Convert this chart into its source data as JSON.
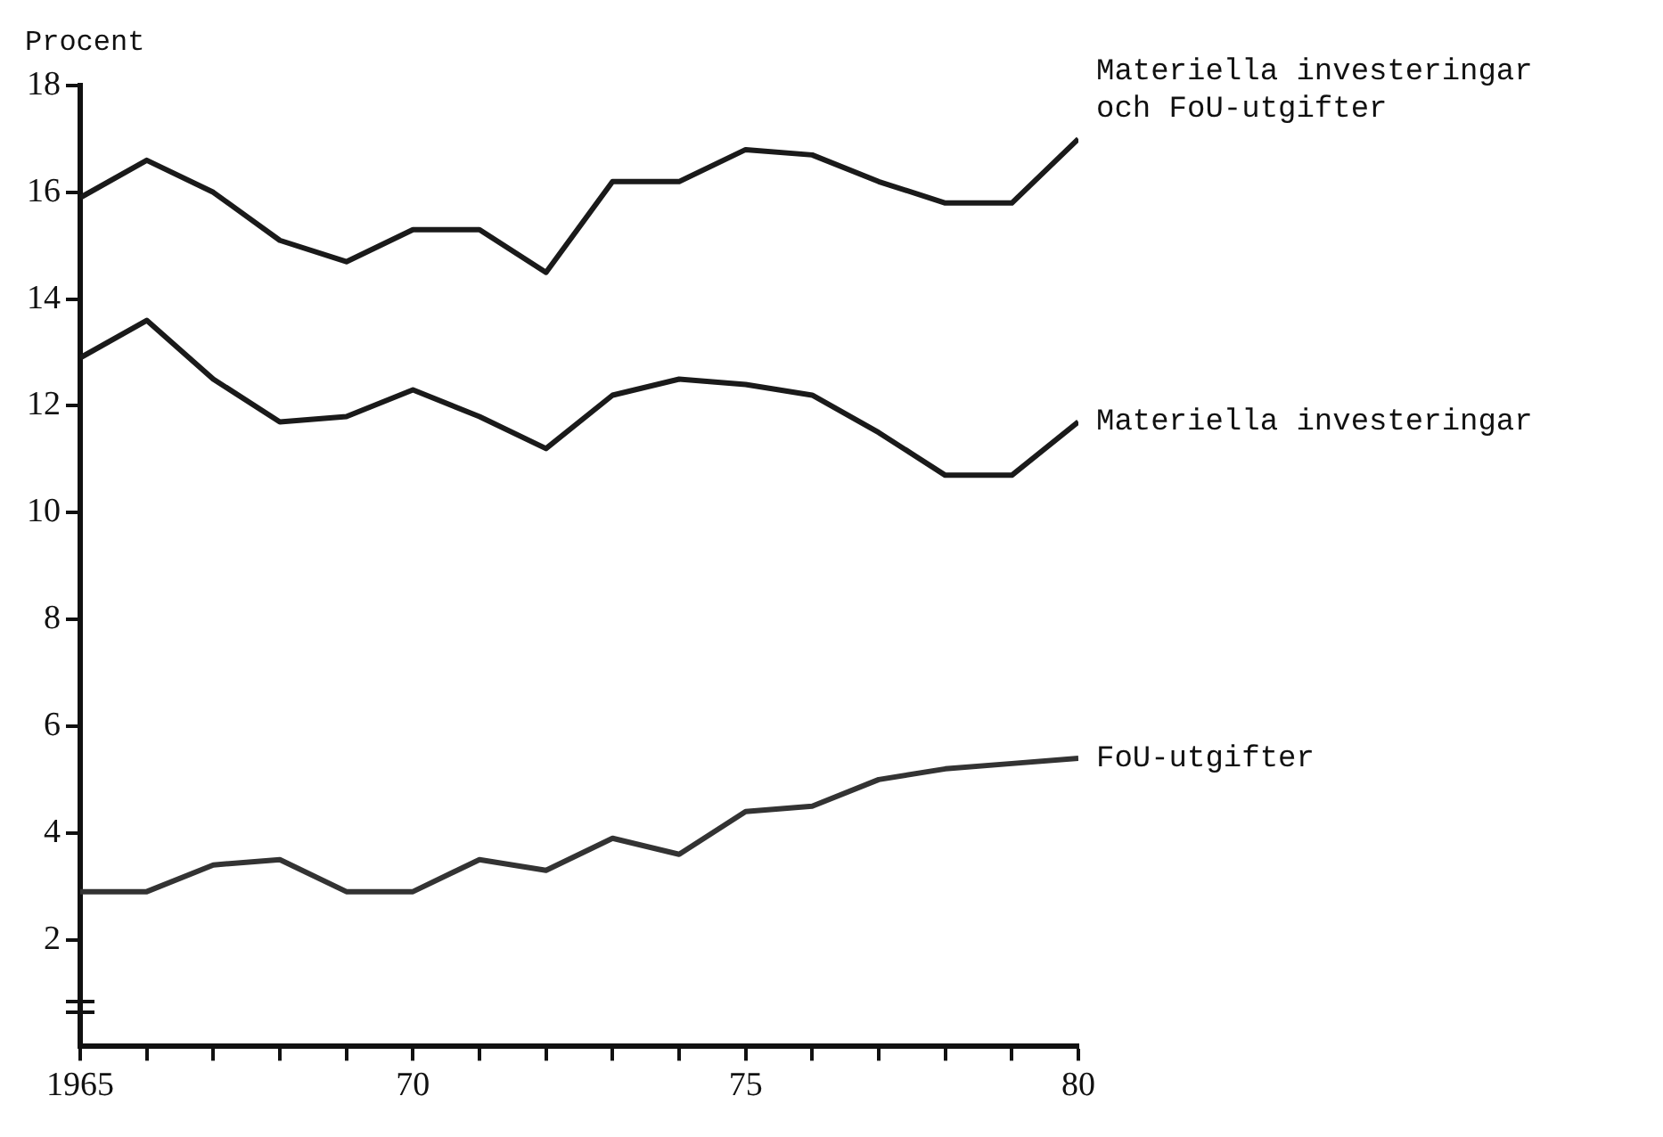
{
  "chart_data": {
    "type": "line",
    "ylabel": "Procent",
    "x": [
      1965,
      1966,
      1967,
      1968,
      1969,
      1970,
      1971,
      1972,
      1973,
      1974,
      1975,
      1976,
      1977,
      1978,
      1979,
      1980
    ],
    "series": [
      {
        "name": "Materiella investeringar och FoU-utgifter",
        "color": "#1a1a1a",
        "values": [
          15.9,
          16.6,
          16.0,
          15.1,
          14.7,
          15.3,
          15.3,
          14.5,
          16.2,
          16.2,
          16.8,
          16.7,
          16.2,
          15.8,
          15.8,
          17.0
        ]
      },
      {
        "name": "Materiella investeringar",
        "color": "#1a1a1a",
        "values": [
          12.9,
          13.6,
          12.5,
          11.7,
          11.8,
          12.3,
          11.8,
          11.2,
          12.2,
          12.5,
          12.4,
          12.2,
          11.5,
          10.7,
          10.7,
          11.7
        ]
      },
      {
        "name": "FoU-utgifter",
        "color": "#333333",
        "values": [
          2.9,
          2.9,
          3.4,
          3.5,
          2.9,
          2.9,
          3.5,
          3.3,
          3.9,
          3.6,
          4.4,
          4.5,
          5.0,
          5.2,
          5.3,
          5.4
        ]
      }
    ],
    "xlim": [
      1965,
      1980
    ],
    "xticks": [
      1965,
      {
        "value": 1966,
        "label": null
      },
      {
        "value": 1967,
        "label": null
      },
      {
        "value": 1968,
        "label": null
      },
      {
        "value": 1969,
        "label": null
      },
      {
        "value": 1970,
        "label": "70"
      },
      {
        "value": 1971,
        "label": null
      },
      {
        "value": 1972,
        "label": null
      },
      {
        "value": 1973,
        "label": null
      },
      {
        "value": 1974,
        "label": null
      },
      {
        "value": 1975,
        "label": "75"
      },
      {
        "value": 1976,
        "label": null
      },
      {
        "value": 1977,
        "label": null
      },
      {
        "value": 1978,
        "label": null
      },
      {
        "value": 1979,
        "label": null
      },
      {
        "value": 1980,
        "label": "80"
      }
    ],
    "ylim": [
      0,
      18
    ],
    "yticks": [
      2,
      4,
      6,
      8,
      10,
      12,
      14,
      16,
      18
    ],
    "grid": false,
    "legend": false,
    "marker": "none",
    "line_style": "solid"
  }
}
